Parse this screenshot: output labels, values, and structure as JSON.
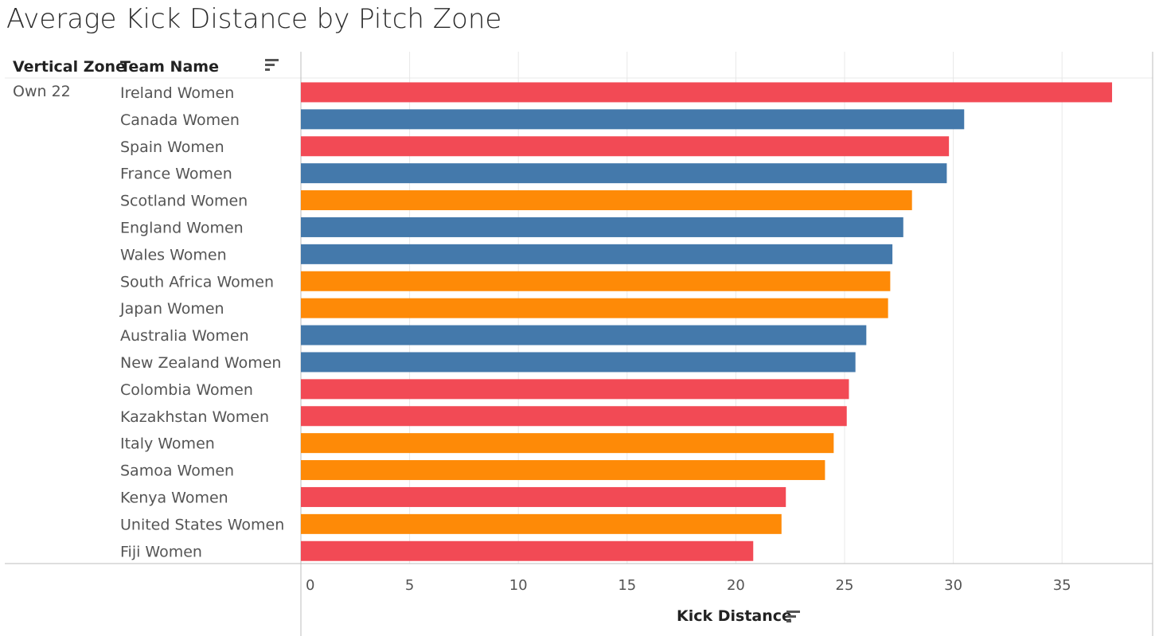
{
  "header": {
    "title": "Average Kick Distance by Pitch Zone",
    "col_vertical_zone": "Vertical Zone",
    "col_team_name": "Team Name",
    "zone_value": "Own 22",
    "sort_icon": "sort-descending-icon"
  },
  "colors": {
    "red": "#f24a55",
    "blue": "#4479ab",
    "orange": "#fe8a07",
    "grid": "#e8e8e8",
    "axis": "#bdbdbd"
  },
  "chart_data": {
    "type": "bar",
    "orientation": "horizontal",
    "title": "Average Kick Distance by Pitch Zone",
    "xlabel": "Kick Distance",
    "ylabel": "Team Name",
    "xlim": [
      0,
      40
    ],
    "xticks": [
      0,
      5,
      10,
      15,
      20,
      25,
      30,
      35
    ],
    "grid": true,
    "categories": [
      "Ireland Women",
      "Canada Women",
      "Spain Women",
      "France Women",
      "Scotland Women",
      "England Women",
      "Wales Women",
      "South Africa Women",
      "Japan Women",
      "Australia Women",
      "New Zealand Women",
      "Colombia Women",
      "Kazakhstan Women",
      "Italy Women",
      "Samoa Women",
      "Kenya Women",
      "United States Women",
      "Fiji Women"
    ],
    "values": [
      37.3,
      30.5,
      29.8,
      29.7,
      28.1,
      27.7,
      27.2,
      27.1,
      27.0,
      26.0,
      25.5,
      25.2,
      25.1,
      24.5,
      24.1,
      22.3,
      22.1,
      20.8
    ],
    "bar_colors": [
      "red",
      "blue",
      "red",
      "blue",
      "orange",
      "blue",
      "blue",
      "orange",
      "orange",
      "blue",
      "blue",
      "red",
      "red",
      "orange",
      "orange",
      "red",
      "orange",
      "red"
    ]
  }
}
